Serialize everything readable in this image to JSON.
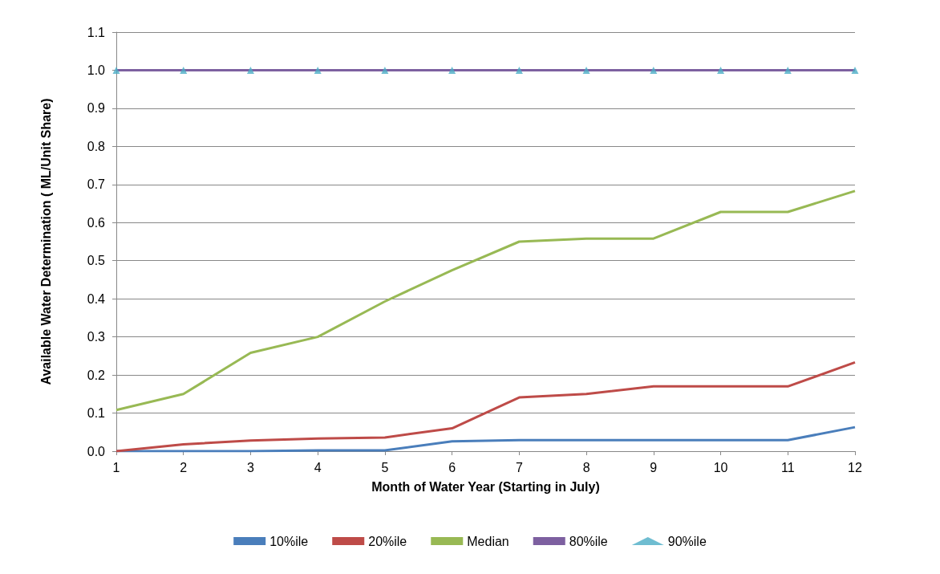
{
  "chart_data": {
    "type": "line",
    "xlabel": "Month of Water Year (Starting in July)",
    "ylabel": "Available Water Determination ( ML/Unit Share)",
    "x": [
      1,
      2,
      3,
      4,
      5,
      6,
      7,
      8,
      9,
      10,
      11,
      12
    ],
    "xlim": [
      1,
      12
    ],
    "xticks": [
      1,
      2,
      3,
      4,
      5,
      6,
      7,
      8,
      9,
      10,
      11,
      12
    ],
    "ylim": [
      0,
      1.1
    ],
    "yticks": [
      {
        "value": 0,
        "label": "0.0"
      },
      {
        "value": 0.1,
        "label": "0.1"
      },
      {
        "value": 0.2,
        "label": "0.2"
      },
      {
        "value": 0.3,
        "label": "0.3"
      },
      {
        "value": 0.4,
        "label": "0.4"
      },
      {
        "value": 0.5,
        "label": "0.5"
      },
      {
        "value": 0.6,
        "label": "0.6"
      },
      {
        "value": 0.7,
        "label": "0.7"
      },
      {
        "value": 0.8,
        "label": "0.8"
      },
      {
        "value": 0.9,
        "label": "0.9"
      },
      {
        "value": 1,
        "label": "1.0"
      },
      {
        "value": 1.1,
        "label": "1.1"
      }
    ],
    "grid": "y",
    "legend": "bottom",
    "marker": "none",
    "series": [
      {
        "name": "10%ile",
        "color": "#4a7ebb",
        "values": [
          0,
          0,
          0,
          0.002,
          0.002,
          0.026,
          0.029,
          0.029,
          0.029,
          0.029,
          0.029,
          0.063
        ]
      },
      {
        "name": "20%ile",
        "color": "#be4b48",
        "values": [
          0,
          0.018,
          0.028,
          0.033,
          0.036,
          0.06,
          0.141,
          0.15,
          0.17,
          0.17,
          0.17,
          0.233
        ]
      },
      {
        "name": "Median",
        "color": "#98b954",
        "values": [
          0.108,
          0.15,
          0.258,
          0.3,
          0.393,
          0.475,
          0.55,
          0.558,
          0.558,
          0.628,
          0.628,
          0.683
        ]
      },
      {
        "name": "80%ile",
        "color": "#7d60a0",
        "values": [
          1,
          1,
          1,
          1,
          1,
          1,
          1,
          1,
          1,
          1,
          1,
          1
        ]
      },
      {
        "name": "90%ile",
        "type": "scatter",
        "marker": "triangle",
        "color": "#4bacc6",
        "values": [
          1,
          1,
          1,
          1,
          1,
          1,
          1,
          1,
          1,
          1,
          1,
          1
        ]
      }
    ]
  }
}
